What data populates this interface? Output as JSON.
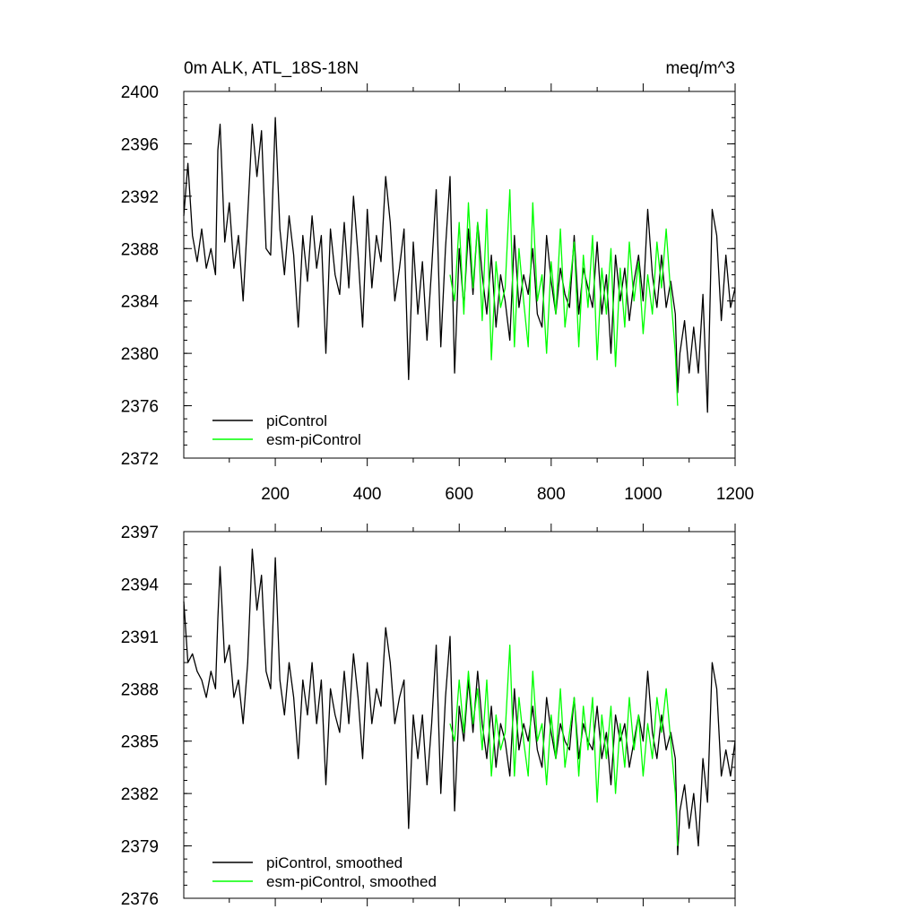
{
  "chart_data": [
    {
      "type": "line",
      "title": "0m ALK, ATL_18S-18N",
      "units": "meq/m^3",
      "xlim": [
        1,
        1200
      ],
      "ylim": [
        2372,
        2400
      ],
      "xticks": [
        200,
        400,
        600,
        800,
        1000,
        1200
      ],
      "yticks": [
        2372,
        2376,
        2380,
        2384,
        2388,
        2392,
        2396,
        2400
      ],
      "grid": false,
      "legend_position": "bottom-left",
      "series": [
        {
          "name": "piControl",
          "color": "#000000",
          "x": [
            1,
            10,
            20,
            30,
            40,
            50,
            60,
            70,
            75,
            80,
            90,
            100,
            110,
            120,
            130,
            140,
            150,
            160,
            170,
            180,
            190,
            200,
            210,
            220,
            230,
            240,
            250,
            260,
            270,
            280,
            290,
            300,
            310,
            320,
            330,
            340,
            350,
            360,
            370,
            380,
            390,
            400,
            410,
            420,
            430,
            440,
            450,
            460,
            470,
            480,
            490,
            500,
            510,
            520,
            530,
            540,
            550,
            560,
            570,
            580,
            590,
            600,
            610,
            620,
            630,
            640,
            650,
            660,
            670,
            680,
            690,
            700,
            710,
            720,
            730,
            740,
            750,
            760,
            770,
            780,
            790,
            800,
            810,
            820,
            830,
            840,
            850,
            860,
            870,
            880,
            890,
            900,
            910,
            920,
            930,
            940,
            950,
            960,
            970,
            980,
            990,
            1000,
            1010,
            1020,
            1030,
            1040,
            1050,
            1060,
            1070,
            1075,
            1080,
            1090,
            1100,
            1110,
            1120,
            1130,
            1140,
            1150,
            1160,
            1170,
            1180,
            1190,
            1200
          ],
          "y": [
            2390.5,
            2394.5,
            2389,
            2387,
            2389.5,
            2386.5,
            2388,
            2386,
            2395.5,
            2397.5,
            2388.5,
            2391.5,
            2386.5,
            2389,
            2384,
            2390.5,
            2397.5,
            2393.5,
            2397,
            2388,
            2387.5,
            2398,
            2389.5,
            2386,
            2390.5,
            2387.5,
            2382,
            2389,
            2385.5,
            2390.5,
            2386.5,
            2389,
            2380,
            2389.5,
            2386,
            2384.5,
            2390,
            2385,
            2392,
            2387.5,
            2382,
            2391,
            2385,
            2389,
            2387,
            2393.5,
            2390,
            2384,
            2386.5,
            2389.5,
            2378,
            2388.5,
            2383,
            2387,
            2381,
            2386.5,
            2392.5,
            2380.5,
            2388,
            2393.5,
            2378.5,
            2388,
            2383.5,
            2389.5,
            2384.5,
            2390,
            2386,
            2383,
            2387.5,
            2382,
            2386,
            2384,
            2381,
            2389,
            2383.5,
            2386,
            2384.5,
            2388,
            2383,
            2382,
            2389,
            2385.5,
            2383,
            2386.5,
            2384.5,
            2383.5,
            2389,
            2383,
            2386.5,
            2385,
            2383.5,
            2388.5,
            2383,
            2386,
            2380,
            2387.5,
            2384,
            2386.5,
            2382.5,
            2385.5,
            2387.5,
            2384,
            2391,
            2386,
            2383.5,
            2387.5,
            2383.5,
            2385.5,
            2383,
            2377,
            2380,
            2382.5,
            2378.5,
            2382,
            2378.5,
            2384.5,
            2375.5,
            2391,
            2389,
            2382.5,
            2387.5,
            2383.5,
            2385
          ]
        },
        {
          "name": "esm-piControl",
          "color": "#00ff00",
          "x": [
            580,
            590,
            600,
            610,
            620,
            630,
            640,
            650,
            660,
            670,
            680,
            690,
            700,
            710,
            720,
            730,
            740,
            750,
            760,
            770,
            780,
            790,
            800,
            810,
            820,
            830,
            840,
            850,
            860,
            870,
            880,
            890,
            900,
            910,
            920,
            930,
            940,
            950,
            960,
            970,
            980,
            990,
            1000,
            1010,
            1020,
            1030,
            1040,
            1050,
            1060,
            1070,
            1075
          ],
          "y": [
            2386,
            2384,
            2390,
            2383,
            2391.5,
            2385,
            2390,
            2382.5,
            2391,
            2379.5,
            2387,
            2383.5,
            2385,
            2392.5,
            2380.5,
            2388,
            2384,
            2380.5,
            2391.5,
            2384,
            2386,
            2380,
            2387,
            2383,
            2389.5,
            2382,
            2385,
            2388.5,
            2380.5,
            2387.5,
            2383.5,
            2389,
            2379.5,
            2386.5,
            2383,
            2388,
            2379,
            2386.5,
            2382,
            2388.5,
            2384,
            2387,
            2381.5,
            2386,
            2383,
            2388.5,
            2385,
            2389.5,
            2384.5,
            2380,
            2376
          ]
        }
      ]
    },
    {
      "type": "line",
      "xlim": [
        1,
        1200
      ],
      "ylim": [
        2376,
        2397
      ],
      "yticks": [
        2376,
        2379,
        2382,
        2385,
        2388,
        2391,
        2394,
        2397
      ],
      "grid": false,
      "legend_position": "bottom-left",
      "series": [
        {
          "name": "piControl, smoothed",
          "color": "#000000",
          "x": [
            1,
            10,
            20,
            30,
            40,
            50,
            60,
            70,
            75,
            80,
            90,
            100,
            110,
            120,
            130,
            140,
            150,
            160,
            170,
            180,
            190,
            200,
            210,
            220,
            230,
            240,
            250,
            260,
            270,
            280,
            290,
            300,
            310,
            320,
            330,
            340,
            350,
            360,
            370,
            380,
            390,
            400,
            410,
            420,
            430,
            440,
            450,
            460,
            470,
            480,
            490,
            500,
            510,
            520,
            530,
            540,
            550,
            560,
            570,
            580,
            590,
            600,
            610,
            620,
            630,
            640,
            650,
            660,
            670,
            680,
            690,
            700,
            710,
            720,
            730,
            740,
            750,
            760,
            770,
            780,
            790,
            800,
            810,
            820,
            830,
            840,
            850,
            860,
            870,
            880,
            890,
            900,
            910,
            920,
            930,
            940,
            950,
            960,
            970,
            980,
            990,
            1000,
            1010,
            1020,
            1030,
            1040,
            1050,
            1060,
            1070,
            1075,
            1080,
            1090,
            1100,
            1110,
            1120,
            1130,
            1140,
            1150,
            1160,
            1170,
            1180,
            1190,
            1200
          ],
          "y": [
            2393,
            2389.5,
            2390,
            2389,
            2388.5,
            2387.5,
            2389,
            2388,
            2392,
            2395,
            2389.5,
            2390.5,
            2387.5,
            2388.5,
            2386,
            2389.5,
            2396,
            2392.5,
            2394.5,
            2389,
            2388,
            2395.5,
            2388.5,
            2386.5,
            2389.5,
            2387.5,
            2384,
            2388.5,
            2386.5,
            2389.5,
            2386,
            2388.5,
            2382.5,
            2388,
            2386.5,
            2385.5,
            2389,
            2386,
            2390,
            2387.5,
            2384,
            2389.5,
            2386,
            2388,
            2387,
            2391.5,
            2389.5,
            2386,
            2387.5,
            2388.5,
            2380,
            2386.5,
            2384,
            2386.5,
            2382.5,
            2386,
            2390.5,
            2382,
            2387.5,
            2391,
            2381,
            2387,
            2385,
            2388.5,
            2385.5,
            2389,
            2386,
            2384,
            2387,
            2383.5,
            2386,
            2385,
            2383,
            2388,
            2384.5,
            2386,
            2385,
            2387,
            2384.5,
            2383.5,
            2387.5,
            2385.5,
            2384,
            2386,
            2385,
            2384.5,
            2387.5,
            2384,
            2386,
            2385,
            2384.5,
            2387,
            2384,
            2385.5,
            2382.5,
            2386.5,
            2385,
            2386,
            2383.5,
            2385,
            2386.5,
            2385,
            2389,
            2385.5,
            2384,
            2386.5,
            2384.5,
            2385.5,
            2384,
            2378.5,
            2381,
            2382.5,
            2380,
            2382,
            2379,
            2384,
            2381.5,
            2389.5,
            2388,
            2383,
            2384.5,
            2383,
            2385
          ]
        },
        {
          "name": "esm-piControl, smoothed",
          "color": "#00ff00",
          "x": [
            580,
            590,
            600,
            610,
            620,
            630,
            640,
            650,
            660,
            670,
            680,
            690,
            700,
            710,
            720,
            730,
            740,
            750,
            760,
            770,
            780,
            790,
            800,
            810,
            820,
            830,
            840,
            850,
            860,
            870,
            880,
            890,
            900,
            910,
            920,
            930,
            940,
            950,
            960,
            970,
            980,
            990,
            1000,
            1010,
            1020,
            1030,
            1040,
            1050,
            1060,
            1070,
            1075
          ],
          "y": [
            2386,
            2385,
            2388.5,
            2385.5,
            2389,
            2386,
            2388,
            2384.5,
            2388.5,
            2383,
            2386.5,
            2384.5,
            2385.5,
            2390.5,
            2383,
            2387.5,
            2385,
            2383,
            2389,
            2385,
            2386,
            2382.5,
            2386.5,
            2384,
            2388,
            2383.5,
            2385.5,
            2387.5,
            2383,
            2387,
            2384.5,
            2387.5,
            2381.5,
            2386.5,
            2384,
            2387,
            2382,
            2386,
            2383.5,
            2387.5,
            2384.5,
            2386.5,
            2383,
            2386,
            2384,
            2387.5,
            2385.5,
            2388,
            2385,
            2382,
            2379
          ]
        }
      ]
    }
  ]
}
